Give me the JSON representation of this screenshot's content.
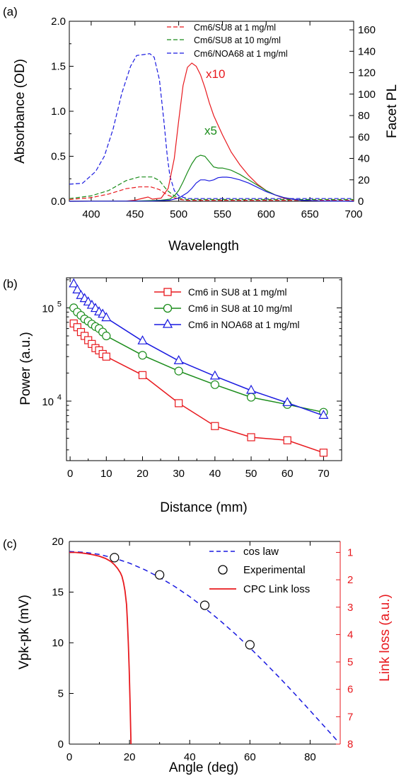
{
  "charts": [
    {
      "panel_label": "(a)",
      "type": "line",
      "xlabel": "Wavelength",
      "ylabel": "Absorbance (OD)",
      "ylabel_right": "Facet PL",
      "xlim": [
        375,
        700
      ],
      "ylim": [
        0,
        2.0
      ],
      "ylim_right": [
        0,
        168
      ],
      "xticks": [
        "400",
        "450",
        "500",
        "550",
        "600",
        "650",
        "700"
      ],
      "yticks": [
        "0.0",
        "0.5",
        "1.0",
        "1.5",
        "2.0"
      ],
      "yticks_right": [
        "0",
        "20",
        "40",
        "60",
        "80",
        "100",
        "120",
        "140",
        "160"
      ],
      "legend": [
        "Cm6/SU8 at 1 mg/ml",
        "Cm6/SU8 at 10 mg/ml",
        "Cm6/NOA68 at 1 mg/ml"
      ],
      "annotations": [
        "x10",
        "x5"
      ],
      "colors": {
        "red": "#e8191e",
        "green": "#1a8c1a",
        "blue": "#1a1ae0"
      },
      "series": [
        {
          "color": "blue",
          "style": "dashed",
          "axis": "left",
          "x": [
            375,
            390,
            405,
            415,
            425,
            435,
            445,
            452,
            460,
            467,
            472,
            478,
            483,
            487,
            490,
            495,
            500,
            510,
            520,
            550,
            700
          ],
          "y": [
            0.19,
            0.2,
            0.33,
            0.5,
            0.8,
            1.2,
            1.5,
            1.62,
            1.63,
            1.64,
            1.6,
            1.35,
            0.9,
            0.5,
            0.28,
            0.12,
            0.06,
            0.03,
            0.03,
            0.03,
            0.03
          ]
        },
        {
          "color": "green",
          "style": "dashed",
          "axis": "left",
          "x": [
            375,
            400,
            420,
            440,
            455,
            470,
            478,
            487,
            495,
            502,
            510,
            520,
            700
          ],
          "y": [
            0.03,
            0.06,
            0.12,
            0.23,
            0.27,
            0.27,
            0.23,
            0.12,
            0.06,
            0.03,
            0.02,
            0.02,
            0.02
          ]
        },
        {
          "color": "red",
          "style": "dashed",
          "axis": "left",
          "x": [
            375,
            400,
            420,
            440,
            455,
            468,
            478,
            487,
            495,
            502,
            510,
            520,
            700
          ],
          "y": [
            0.02,
            0.04,
            0.08,
            0.14,
            0.16,
            0.16,
            0.13,
            0.07,
            0.04,
            0.02,
            0.01,
            0.01,
            0.01
          ]
        },
        {
          "color": "red",
          "style": "solid",
          "axis": "right",
          "x": [
            375,
            440,
            450,
            460,
            465,
            470,
            480,
            488,
            495,
            500,
            505,
            510,
            515,
            520,
            525,
            530,
            535,
            540,
            550,
            560,
            570,
            580,
            590,
            600,
            610,
            620,
            640,
            660,
            700
          ],
          "y": [
            0,
            0.2,
            1,
            3,
            4,
            2,
            3,
            12,
            40,
            75,
            108,
            125,
            129,
            126,
            118,
            106,
            92,
            80,
            62,
            46,
            34,
            24,
            16,
            10,
            6,
            3,
            1,
            0.3,
            0
          ]
        },
        {
          "color": "green",
          "style": "solid",
          "axis": "right",
          "x": [
            375,
            450,
            480,
            490,
            495,
            500,
            505,
            510,
            515,
            520,
            525,
            530,
            535,
            540,
            545,
            550,
            555,
            560,
            570,
            580,
            590,
            600,
            610,
            620,
            630,
            640,
            660,
            700
          ],
          "y": [
            0,
            0.2,
            1,
            2,
            5,
            10,
            18,
            27,
            35,
            41,
            43,
            42,
            37,
            32,
            31,
            31,
            30,
            29,
            25,
            20,
            15,
            10,
            6,
            3.5,
            2,
            1,
            0.3,
            0
          ]
        },
        {
          "color": "blue",
          "style": "solid",
          "axis": "right",
          "x": [
            375,
            470,
            490,
            500,
            510,
            515,
            520,
            525,
            530,
            535,
            540,
            545,
            550,
            555,
            560,
            570,
            580,
            590,
            600,
            610,
            620,
            630,
            640,
            660,
            700
          ],
          "y": [
            0,
            0.2,
            1,
            3,
            8,
            12,
            17,
            20,
            20,
            19,
            20,
            22,
            22.5,
            22.5,
            22,
            20,
            17,
            13,
            9,
            6,
            3.5,
            2,
            1,
            0.3,
            0
          ]
        }
      ]
    },
    {
      "panel_label": "(b)",
      "type": "line",
      "yscale": "log",
      "xlabel": "Distance (mm)",
      "ylabel": "Power (a.u.)",
      "xlim": [
        -1,
        75
      ],
      "ylim": [
        2300,
        210000
      ],
      "xticks": [
        "0",
        "10",
        "20",
        "30",
        "40",
        "50",
        "60",
        "70"
      ],
      "yticks": [
        {
          "base": "10",
          "exp": "5"
        },
        {
          "base": "10",
          "exp": "4"
        }
      ],
      "colors": {
        "red": "#e8191e",
        "green": "#1a8c1a",
        "blue": "#1a1ae0"
      },
      "series": [
        {
          "name": "Cm6 in SU8 at 1 mg/ml",
          "color": "red",
          "marker": "square",
          "x": [
            1,
            2,
            3,
            4,
            5,
            6,
            7,
            8,
            9,
            10,
            20,
            30,
            40,
            50,
            60,
            70
          ],
          "y": [
            68000,
            62000,
            55000,
            50000,
            45000,
            41000,
            37000,
            35000,
            32000,
            30000,
            19000,
            9500,
            5400,
            4100,
            3800,
            2800
          ]
        },
        {
          "name": "Cm6 in SU8 at 10 mg/ml",
          "color": "green",
          "marker": "circle",
          "x": [
            1,
            2,
            3,
            4,
            5,
            6,
            7,
            8,
            9,
            10,
            20,
            30,
            40,
            50,
            60,
            70
          ],
          "y": [
            100000,
            90000,
            83000,
            76000,
            72000,
            67000,
            63000,
            60000,
            55000,
            50000,
            31000,
            21000,
            15000,
            11000,
            9200,
            7600
          ]
        },
        {
          "name": "Cm6 in NOA68 at 1 mg/ml",
          "color": "blue",
          "marker": "triangle",
          "x": [
            1,
            2,
            3,
            4,
            5,
            6,
            7,
            8,
            9,
            10,
            20,
            30,
            40,
            50,
            60,
            70
          ],
          "y": [
            180000,
            155000,
            135000,
            125000,
            115000,
            106000,
            98000,
            90000,
            85000,
            78000,
            44000,
            27000,
            18500,
            13000,
            9600,
            7000
          ]
        }
      ]
    },
    {
      "panel_label": "(c)",
      "type": "line",
      "xlabel": "Angle (deg)",
      "ylabel": "Vpk-pk (mV)",
      "ylabel_right": "Link loss (a.u.)",
      "xlim": [
        0,
        90
      ],
      "ylim": [
        0,
        20
      ],
      "ylim_right": [
        0.6,
        8
      ],
      "xticks": [
        "0",
        "20",
        "40",
        "60",
        "80"
      ],
      "yticks": [
        "0",
        "5",
        "10",
        "15",
        "20"
      ],
      "yticks_right": [
        "1",
        "2",
        "3",
        "4",
        "5",
        "6",
        "7",
        "8"
      ],
      "colors": {
        "red": "#e8191e",
        "blue": "#1a1ae0",
        "black": "#000000"
      },
      "series": [
        {
          "name": "cos law",
          "color": "blue",
          "style": "dashed",
          "axis": "left",
          "x": [
            0,
            5,
            10,
            15,
            20,
            25,
            30,
            35,
            40,
            45,
            50,
            55,
            60,
            65,
            70,
            75,
            80,
            85,
            89.5
          ],
          "y": [
            19,
            18.93,
            18.71,
            18.35,
            17.85,
            17.22,
            16.45,
            15.56,
            14.55,
            13.43,
            12.21,
            10.9,
            9.5,
            8.03,
            6.5,
            4.92,
            3.3,
            1.66,
            0.17
          ]
        },
        {
          "name": "Experimental",
          "color": "black",
          "marker": "open-circle",
          "axis": "left",
          "x": [
            15,
            30,
            45,
            60
          ],
          "y": [
            18.4,
            16.7,
            13.7,
            9.8
          ]
        },
        {
          "name": "CPC Link loss",
          "color": "red",
          "style": "solid",
          "axis": "right",
          "x": [
            0,
            2,
            4,
            6,
            8,
            10,
            12,
            13,
            14,
            15,
            16,
            17,
            17.5,
            18,
            18.5,
            19,
            19.3,
            19.6,
            19.9,
            20.2,
            20.5
          ],
          "y": [
            1,
            1.0,
            1.02,
            1.05,
            1.09,
            1.14,
            1.22,
            1.28,
            1.35,
            1.45,
            1.58,
            1.75,
            1.88,
            2.1,
            2.4,
            2.9,
            3.5,
            4.3,
            5.3,
            6.6,
            8
          ]
        }
      ]
    }
  ]
}
